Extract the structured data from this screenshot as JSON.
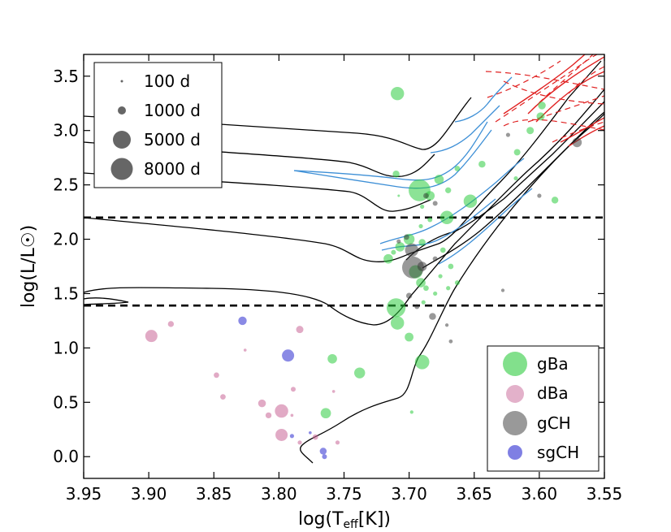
{
  "chart_data": {
    "type": "scatter",
    "title": "",
    "xlabel_main": "log(T",
    "xlabel_sub": "eff",
    "xlabel_tail": "[K])",
    "ylabel": "log(L/L☉)",
    "xlim": [
      3.95,
      3.55
    ],
    "ylim": [
      -0.2,
      3.7
    ],
    "x_ticks": [
      "3.95",
      "3.90",
      "3.85",
      "3.80",
      "3.75",
      "3.70",
      "3.65",
      "3.60",
      "3.55"
    ],
    "y_ticks": [
      "0.0",
      "0.5",
      "1.0",
      "1.5",
      "2.0",
      "2.5",
      "3.0",
      "3.5"
    ],
    "reference_lines": [
      {
        "y": 2.2,
        "style": "dashed",
        "color": "#000000"
      },
      {
        "y": 1.39,
        "style": "dashed",
        "color": "#000000"
      }
    ],
    "size_legend": {
      "placement": "top-left",
      "entries": [
        {
          "label": "100 d",
          "period": 100
        },
        {
          "label": "1000 d",
          "period": 1000
        },
        {
          "label": "5000 d",
          "period": 5000
        },
        {
          "label": "8000 d",
          "period": 8000
        }
      ]
    },
    "class_legend": {
      "placement": "bottom-right",
      "entries": [
        {
          "label": "gBa",
          "color": "#2ecc40"
        },
        {
          "label": "dBa",
          "color": "#c86496"
        },
        {
          "label": "gCH",
          "color": "#333333"
        },
        {
          "label": "sgCH",
          "color": "#2a2ad0"
        }
      ]
    },
    "series": [
      {
        "name": "gBa",
        "color": "#2ecc40",
        "points": [
          [
            3.709,
            3.34,
            3000
          ],
          [
            3.71,
            2.6,
            800
          ],
          [
            3.692,
            2.45,
            8000
          ],
          [
            3.677,
            2.55,
            1500
          ],
          [
            3.684,
            2.4,
            1500
          ],
          [
            3.67,
            2.45,
            600
          ],
          [
            3.663,
            2.65,
            500
          ],
          [
            3.653,
            2.35,
            3000
          ],
          [
            3.644,
            2.69,
            800
          ],
          [
            3.617,
            2.8,
            700
          ],
          [
            3.607,
            3.0,
            900
          ],
          [
            3.598,
            3.23,
            1000
          ],
          [
            3.599,
            3.13,
            1100
          ],
          [
            3.588,
            2.36,
            800
          ],
          [
            3.671,
            2.2,
            3000
          ],
          [
            3.684,
            2.18,
            400
          ],
          [
            3.691,
            2.12,
            300
          ],
          [
            3.707,
            1.93,
            1500
          ],
          [
            3.7,
            2.0,
            2000
          ],
          [
            3.69,
            1.97,
            800
          ],
          [
            3.716,
            1.82,
            1500
          ],
          [
            3.712,
            1.88,
            400
          ],
          [
            3.691,
            1.6,
            1500
          ],
          [
            3.695,
            1.7,
            3000
          ],
          [
            3.674,
            1.9,
            500
          ],
          [
            3.668,
            1.75,
            500
          ],
          [
            3.663,
            1.6,
            400
          ],
          [
            3.68,
            1.5,
            300
          ],
          [
            3.67,
            1.55,
            300
          ],
          [
            3.687,
            1.55,
            500
          ],
          [
            3.71,
            1.37,
            6000
          ],
          [
            3.709,
            1.23,
            3000
          ],
          [
            3.7,
            1.1,
            1300
          ],
          [
            3.69,
            0.87,
            3500
          ],
          [
            3.759,
            0.9,
            1500
          ],
          [
            3.738,
            0.77,
            2000
          ],
          [
            3.764,
            0.4,
            1800
          ],
          [
            3.698,
            0.41,
            200
          ],
          [
            3.618,
            2.56,
            300
          ],
          [
            3.69,
            2.3,
            300
          ],
          [
            3.708,
            2.4,
            100
          ],
          [
            3.676,
            1.66,
            300
          ],
          [
            3.689,
            1.42,
            300
          ]
        ]
      },
      {
        "name": "dBa",
        "color": "#c86496",
        "points": [
          [
            3.898,
            1.11,
            2500
          ],
          [
            3.883,
            1.22,
            600
          ],
          [
            3.848,
            0.75,
            500
          ],
          [
            3.843,
            0.55,
            500
          ],
          [
            3.826,
            0.98,
            150
          ],
          [
            3.813,
            0.49,
            1000
          ],
          [
            3.808,
            0.38,
            600
          ],
          [
            3.798,
            0.42,
            3000
          ],
          [
            3.798,
            0.2,
            2500
          ],
          [
            3.789,
            0.62,
            400
          ],
          [
            3.784,
            1.17,
            900
          ],
          [
            3.772,
            0.18,
            500
          ],
          [
            3.758,
            0.6,
            150
          ],
          [
            3.755,
            0.13,
            300
          ],
          [
            3.79,
            0.38,
            150
          ],
          [
            3.784,
            0.13,
            300
          ]
        ]
      },
      {
        "name": "gCH",
        "color": "#333333",
        "points": [
          [
            3.697,
            1.74,
            8000
          ],
          [
            3.698,
            1.9,
            3000
          ],
          [
            3.69,
            1.75,
            1500
          ],
          [
            3.702,
            2.02,
            500
          ],
          [
            3.708,
            1.98,
            300
          ],
          [
            3.68,
            2.33,
            400
          ],
          [
            3.687,
            2.4,
            500
          ],
          [
            3.68,
            1.82,
            400
          ],
          [
            3.7,
            1.48,
            600
          ],
          [
            3.694,
            1.38,
            400
          ],
          [
            3.682,
            1.29,
            800
          ],
          [
            3.671,
            1.21,
            200
          ],
          [
            3.668,
            1.06,
            250
          ],
          [
            3.628,
            1.53,
            200
          ],
          [
            3.624,
            2.96,
            300
          ],
          [
            3.6,
            2.4,
            300
          ],
          [
            3.571,
            2.89,
            1500
          ]
        ]
      },
      {
        "name": "sgCH",
        "color": "#2a2ad0",
        "points": [
          [
            3.828,
            1.25,
            1200
          ],
          [
            3.793,
            0.93,
            2500
          ],
          [
            3.79,
            0.19,
            300
          ],
          [
            3.776,
            0.22,
            150
          ],
          [
            3.766,
            0.05,
            800
          ],
          [
            3.765,
            0.0,
            400
          ]
        ]
      }
    ],
    "tracks": {
      "black": "evolutionary tracks",
      "blue": "tracks (blue)",
      "red": "tracks (red dashed)"
    }
  }
}
